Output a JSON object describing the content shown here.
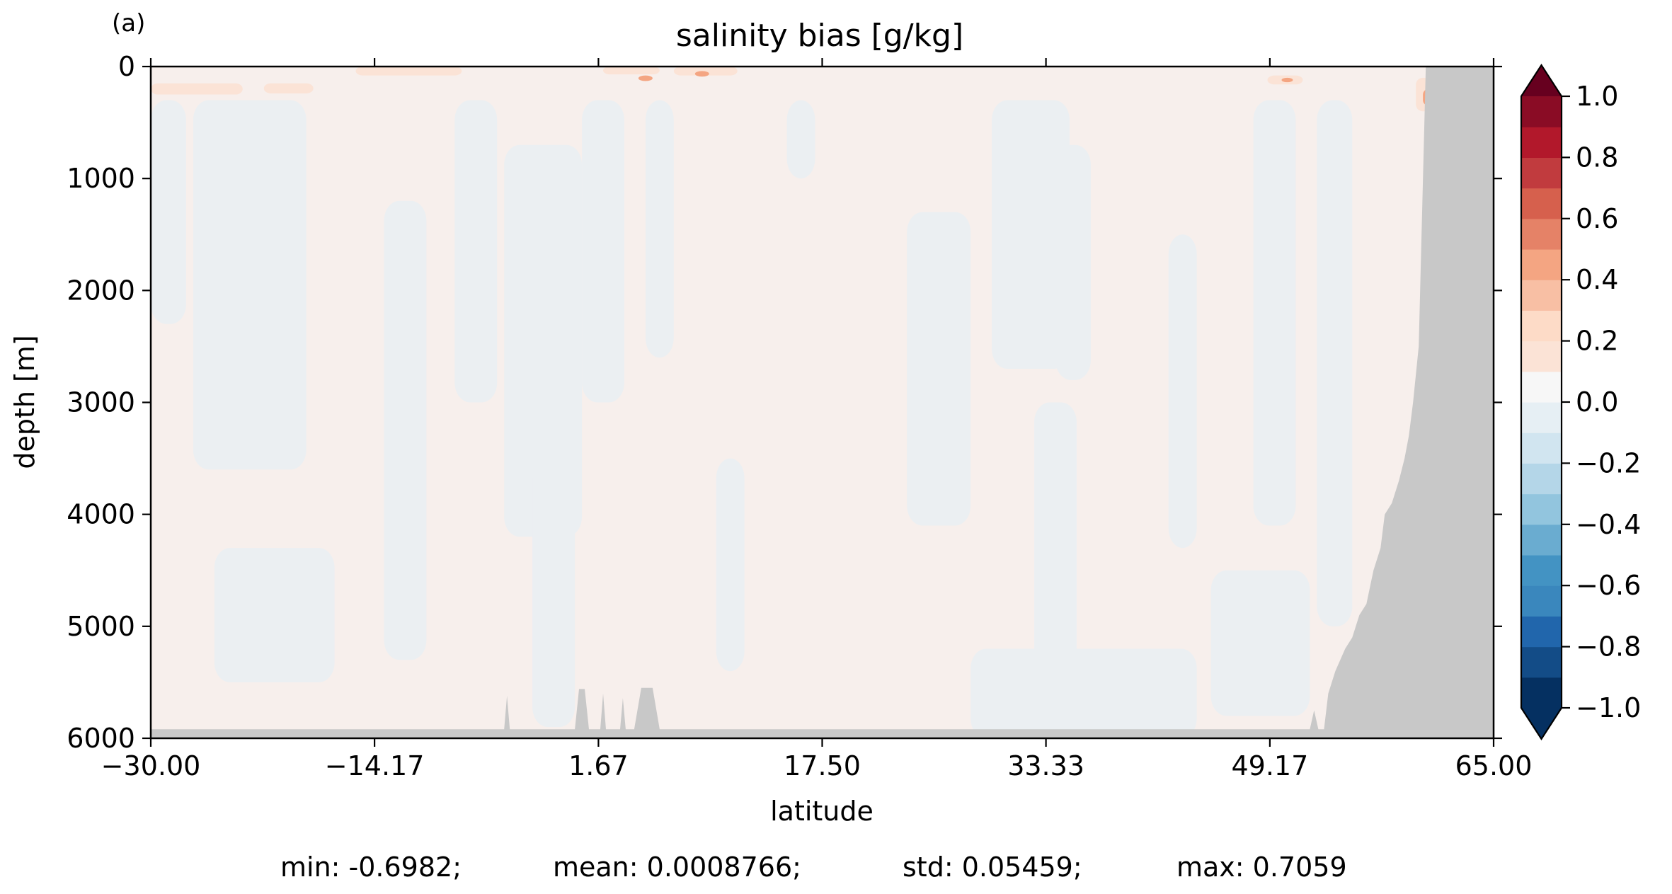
{
  "panel_label": "(a)",
  "stats_line": {
    "min": "min: -0.6982;",
    "mean": "mean: 0.0008766;",
    "std": "std: 0.05459;",
    "max": "max: 0.7059"
  },
  "chart_data": {
    "type": "heatmap",
    "title": "salinity bias [g/kg]",
    "xlabel": "latitude",
    "ylabel": "depth [m]",
    "xlim": [
      -30.0,
      65.0
    ],
    "ylim": [
      6000,
      0
    ],
    "y_inverted": true,
    "xticks": [
      -30.0,
      -14.17,
      1.67,
      17.5,
      33.33,
      49.17,
      65.0
    ],
    "xtick_labels": [
      "−30.00",
      "−14.17",
      "1.67",
      "17.50",
      "33.33",
      "49.17",
      "65.00"
    ],
    "yticks": [
      0,
      1000,
      2000,
      3000,
      4000,
      5000,
      6000
    ],
    "ytick_labels": [
      "0",
      "1000",
      "2000",
      "3000",
      "4000",
      "5000",
      "6000"
    ],
    "colorbar": {
      "levels": [
        -1.0,
        -0.9,
        -0.8,
        -0.7,
        -0.6,
        -0.5,
        -0.4,
        -0.3,
        -0.2,
        -0.1,
        0.0,
        0.1,
        0.2,
        0.3,
        0.4,
        0.5,
        0.6,
        0.7,
        0.8,
        0.9,
        1.0
      ],
      "colors": [
        "#053061",
        "#134c87",
        "#2166ac",
        "#3a87bd",
        "#4393c3",
        "#6aacd0",
        "#92c5de",
        "#b4d6e8",
        "#d1e5f0",
        "#e6eff4",
        "#f7f7f7",
        "#fbe3d6",
        "#fddbc7",
        "#f8bfa4",
        "#f4a582",
        "#e58267",
        "#d6604d",
        "#c13b3e",
        "#b2182b",
        "#8a0c25",
        "#67001f"
      ],
      "under_color": "#053061",
      "over_color": "#67001f",
      "extend": "both",
      "ticks": [
        -1.0,
        -0.8,
        -0.6,
        -0.4,
        -0.2,
        0.0,
        0.2,
        0.4,
        0.6,
        0.8,
        1.0
      ],
      "tick_labels": [
        "−1.0",
        "−0.8",
        "−0.6",
        "−0.4",
        "−0.2",
        "0.0",
        "0.2",
        "0.4",
        "0.6",
        "0.8",
        "1.0"
      ]
    },
    "field_colors": {
      "positive": "#f7efec",
      "negative": "#ebeff2",
      "surface_positive": "#fbe3d6",
      "surface_strong": "#f4a582",
      "land": "#c8c8c8"
    },
    "negative_bands": [
      {
        "lat0": -30.0,
        "lat1": -27.5,
        "z0": 300,
        "z1": 2300
      },
      {
        "lat0": -27.0,
        "lat1": -19.0,
        "z0": 300,
        "z1": 3600
      },
      {
        "lat0": -25.5,
        "lat1": -17.0,
        "z0": 4300,
        "z1": 5500
      },
      {
        "lat0": -13.5,
        "lat1": -10.5,
        "z0": 1200,
        "z1": 5300
      },
      {
        "lat0": -8.5,
        "lat1": -5.5,
        "z0": 300,
        "z1": 3000
      },
      {
        "lat0": -5.0,
        "lat1": 0.5,
        "z0": 700,
        "z1": 4200
      },
      {
        "lat0": -3.0,
        "lat1": 0.0,
        "z0": 3500,
        "z1": 5900
      },
      {
        "lat0": 0.5,
        "lat1": 3.5,
        "z0": 300,
        "z1": 3000
      },
      {
        "lat0": 5.0,
        "lat1": 7.0,
        "z0": 300,
        "z1": 2600
      },
      {
        "lat0": 10.0,
        "lat1": 12.0,
        "z0": 3500,
        "z1": 5400
      },
      {
        "lat0": 15.0,
        "lat1": 17.0,
        "z0": 300,
        "z1": 1000
      },
      {
        "lat0": 23.5,
        "lat1": 28.0,
        "z0": 1300,
        "z1": 4100
      },
      {
        "lat0": 29.5,
        "lat1": 35.0,
        "z0": 300,
        "z1": 2700
      },
      {
        "lat0": 34.0,
        "lat1": 36.5,
        "z0": 700,
        "z1": 2800
      },
      {
        "lat0": 32.5,
        "lat1": 35.5,
        "z0": 3000,
        "z1": 5500
      },
      {
        "lat0": 42.0,
        "lat1": 44.0,
        "z0": 1500,
        "z1": 4300
      },
      {
        "lat0": 48.0,
        "lat1": 51.0,
        "z0": 300,
        "z1": 4100
      },
      {
        "lat0": 52.5,
        "lat1": 55.0,
        "z0": 300,
        "z1": 5000
      },
      {
        "lat0": 28.0,
        "lat1": 44.0,
        "z0": 5200,
        "z1": 6000
      },
      {
        "lat0": 45.0,
        "lat1": 52.0,
        "z0": 4500,
        "z1": 5800
      }
    ],
    "surface_patches": [
      {
        "lat0": -30.0,
        "lat1": -23.5,
        "z0": 150,
        "z1": 250,
        "level": "weak"
      },
      {
        "lat0": -22.0,
        "lat1": -18.5,
        "z0": 150,
        "z1": 240,
        "level": "weak"
      },
      {
        "lat0": -15.5,
        "lat1": -8.0,
        "z0": 0,
        "z1": 80,
        "level": "weak"
      },
      {
        "lat0": 2.0,
        "lat1": 6.0,
        "z0": 0,
        "z1": 70,
        "level": "weak"
      },
      {
        "lat0": 7.0,
        "lat1": 11.5,
        "z0": 0,
        "z1": 80,
        "level": "weak"
      },
      {
        "lat0": 4.5,
        "lat1": 5.5,
        "z0": 80,
        "z1": 130,
        "level": "strong"
      },
      {
        "lat0": 8.5,
        "lat1": 9.5,
        "z0": 40,
        "z1": 90,
        "level": "strong"
      },
      {
        "lat0": 49.0,
        "lat1": 51.5,
        "z0": 80,
        "z1": 160,
        "level": "weak"
      },
      {
        "lat0": 50.0,
        "lat1": 50.8,
        "z0": 100,
        "z1": 140,
        "level": "strong"
      },
      {
        "lat0": 59.5,
        "lat1": 61.0,
        "z0": 100,
        "z1": 400,
        "level": "weak"
      },
      {
        "lat0": 60.0,
        "lat1": 60.8,
        "z0": 200,
        "z1": 350,
        "level": "strong"
      },
      {
        "lat0": 60.3,
        "lat1": 61.0,
        "z0": 0,
        "z1": 60,
        "level": "max"
      }
    ],
    "bathymetry_profile": [
      [
        -30.0,
        5920
      ],
      [
        -5.0,
        5920
      ],
      [
        -4.8,
        5620
      ],
      [
        -4.6,
        5920
      ],
      [
        0.0,
        5920
      ],
      [
        0.3,
        5560
      ],
      [
        0.7,
        5560
      ],
      [
        1.0,
        5920
      ],
      [
        1.8,
        5920
      ],
      [
        2.0,
        5600
      ],
      [
        2.2,
        5920
      ],
      [
        3.2,
        5920
      ],
      [
        3.4,
        5640
      ],
      [
        3.6,
        5920
      ],
      [
        4.2,
        5920
      ],
      [
        4.7,
        5550
      ],
      [
        5.5,
        5550
      ],
      [
        6.0,
        5920
      ],
      [
        52.0,
        5920
      ],
      [
        52.3,
        5750
      ],
      [
        52.6,
        5920
      ],
      [
        53.0,
        5920
      ],
      [
        53.3,
        5600
      ],
      [
        53.8,
        5400
      ],
      [
        54.5,
        5200
      ],
      [
        55.0,
        5100
      ],
      [
        55.5,
        4900
      ],
      [
        56.0,
        4800
      ],
      [
        56.5,
        4500
      ],
      [
        57.0,
        4300
      ],
      [
        57.3,
        4000
      ],
      [
        57.8,
        3900
      ],
      [
        58.3,
        3700
      ],
      [
        58.7,
        3500
      ],
      [
        59.0,
        3300
      ],
      [
        59.3,
        3000
      ],
      [
        59.7,
        2500
      ],
      [
        60.2,
        0
      ],
      [
        65.0,
        0
      ],
      [
        65.0,
        6000
      ],
      [
        -30.0,
        6000
      ]
    ]
  }
}
